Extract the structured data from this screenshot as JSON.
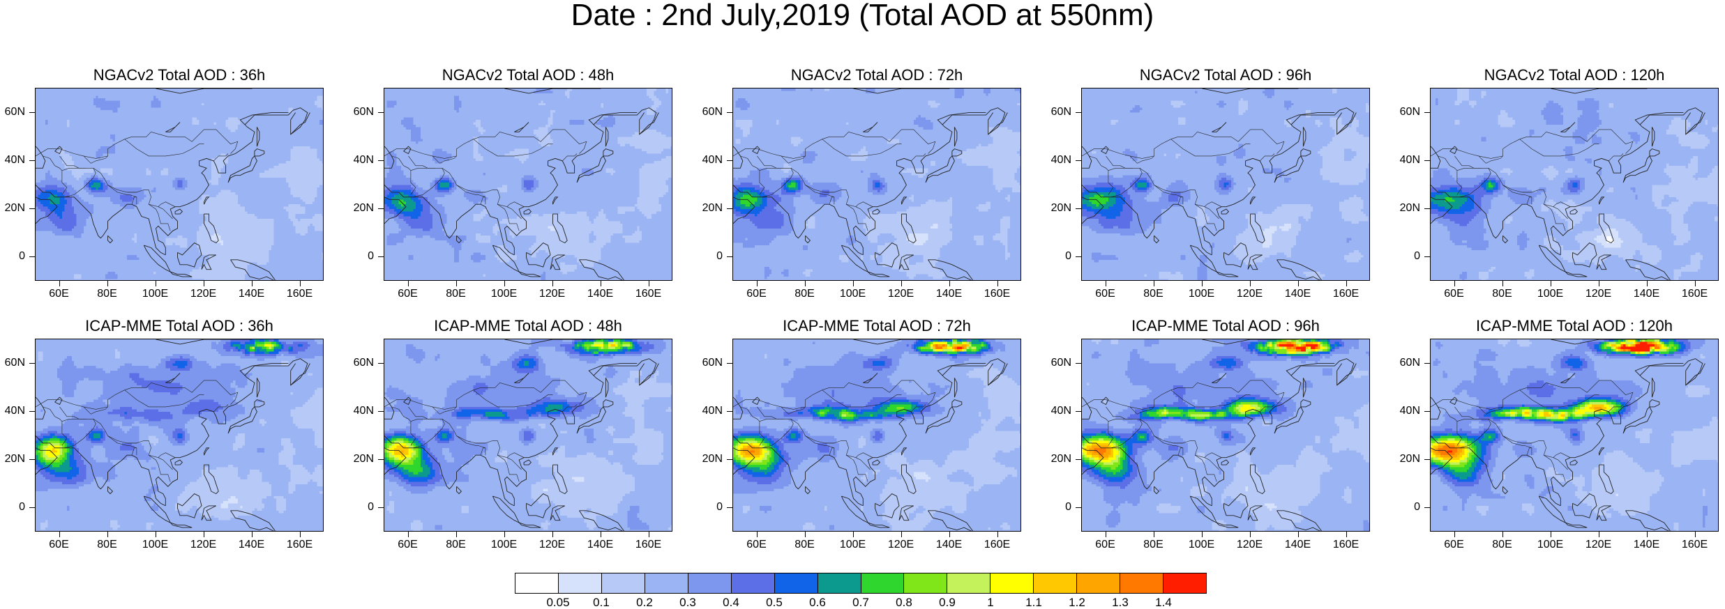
{
  "title": "Date : 2nd July,2019 (Total AOD at 550nm)",
  "panels": [
    {
      "title": "NGACv2 Total AOD : 36h",
      "model": "NGACv2",
      "lead_time": "36h"
    },
    {
      "title": "NGACv2 Total AOD : 48h",
      "model": "NGACv2",
      "lead_time": "48h"
    },
    {
      "title": "NGACv2 Total AOD : 72h",
      "model": "NGACv2",
      "lead_time": "72h"
    },
    {
      "title": "NGACv2 Total AOD : 96h",
      "model": "NGACv2",
      "lead_time": "96h"
    },
    {
      "title": "NGACv2 Total AOD : 120h",
      "model": "NGACv2",
      "lead_time": "120h"
    },
    {
      "title": "ICAP-MME Total AOD : 36h",
      "model": "ICAP-MME",
      "lead_time": "36h"
    },
    {
      "title": "ICAP-MME Total AOD : 48h",
      "model": "ICAP-MME",
      "lead_time": "48h"
    },
    {
      "title": "ICAP-MME Total AOD : 72h",
      "model": "ICAP-MME",
      "lead_time": "72h"
    },
    {
      "title": "ICAP-MME Total AOD : 96h",
      "model": "ICAP-MME",
      "lead_time": "96h"
    },
    {
      "title": "ICAP-MME Total AOD : 120h",
      "model": "ICAP-MME",
      "lead_time": "120h"
    }
  ],
  "axes": {
    "lon_ticks": [
      "60E",
      "80E",
      "100E",
      "120E",
      "140E",
      "160E"
    ],
    "lat_ticks": [
      "60N",
      "40N",
      "20N",
      "0"
    ],
    "lon_range": [
      50,
      170
    ],
    "lat_range": [
      -10,
      70
    ]
  },
  "colorbar": {
    "labels": [
      "0.05",
      "0.1",
      "0.2",
      "0.3",
      "0.4",
      "0.5",
      "0.6",
      "0.7",
      "0.8",
      "0.9",
      "1",
      "1.1",
      "1.2",
      "1.3",
      "1.4"
    ],
    "colors": [
      "#ffffff",
      "#d6e1fb",
      "#b7c9f7",
      "#9bb4f3",
      "#7e97ee",
      "#5c6fe6",
      "#1164e8",
      "#0c9a8f",
      "#2ed62e",
      "#80e619",
      "#c3f25a",
      "#ffff00",
      "#ffc800",
      "#ffa500",
      "#ff7800",
      "#ff1e00"
    ]
  }
}
